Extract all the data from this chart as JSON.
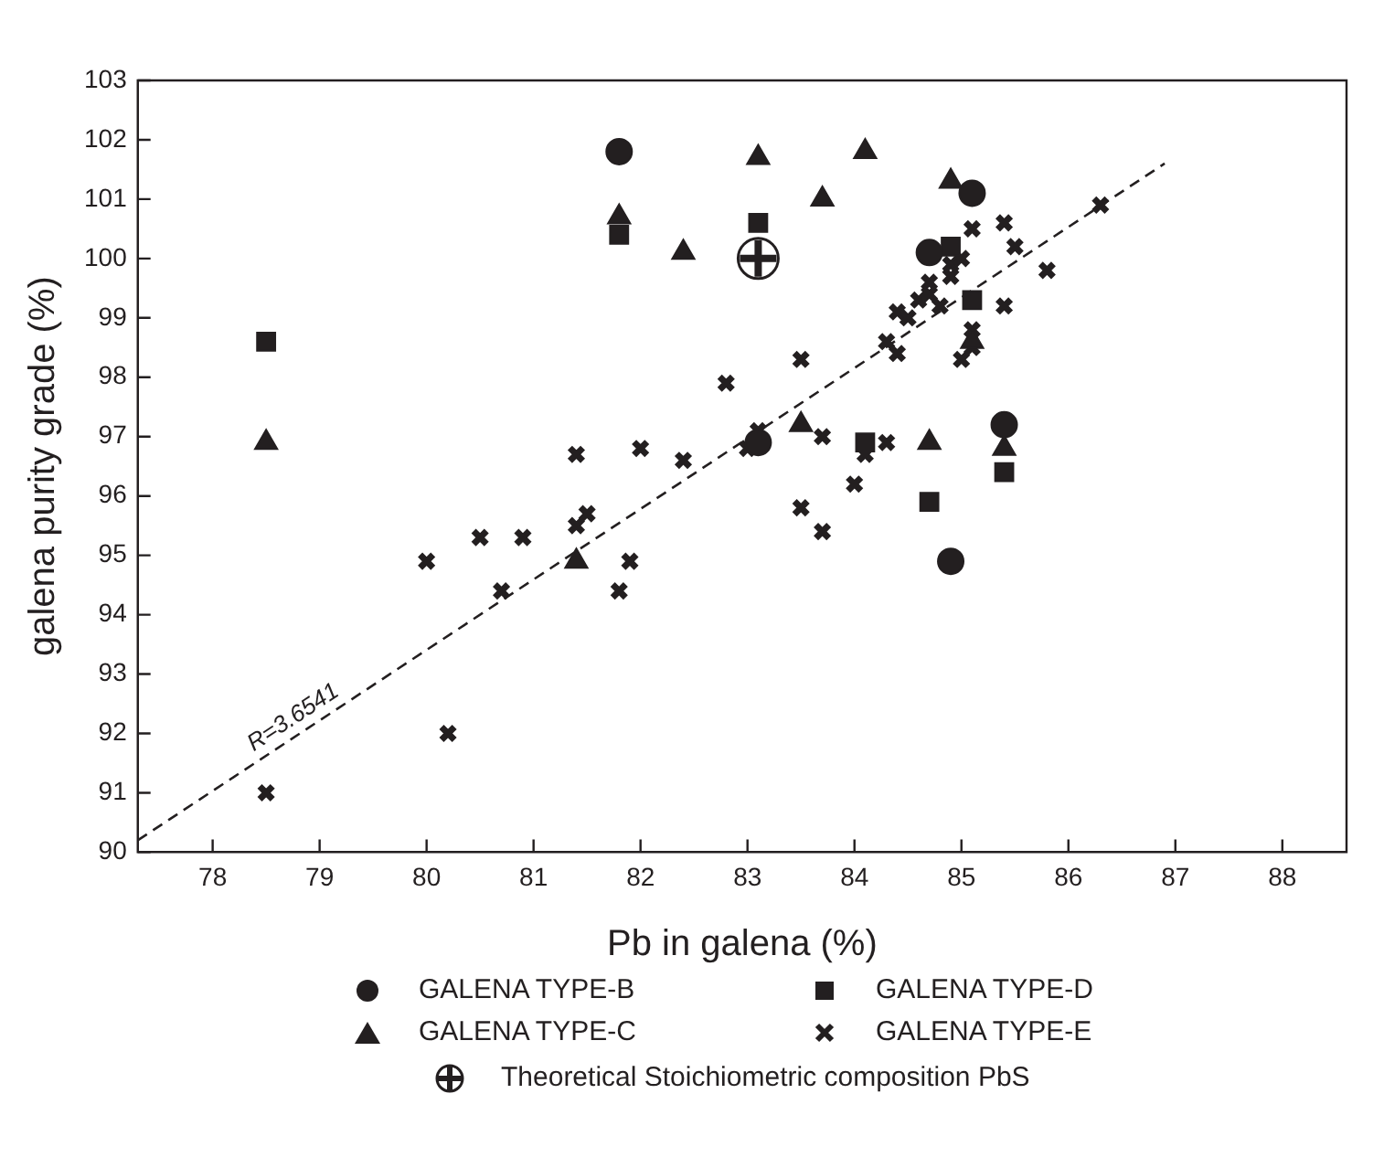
{
  "chart_data": {
    "type": "scatter",
    "xlabel": "Pb in galena (%)",
    "ylabel": "galena purity grade (%)",
    "xlim": [
      77.3,
      88.6
    ],
    "xticks": [
      78,
      79,
      80,
      81,
      82,
      83,
      84,
      85,
      86,
      87,
      88
    ],
    "ylim": [
      90,
      103
    ],
    "yticks": [
      90,
      91,
      92,
      93,
      94,
      95,
      96,
      97,
      98,
      99,
      100,
      101,
      102,
      103
    ],
    "grid": false,
    "legend": "bottom",
    "annotations": [
      "R=3.6541"
    ],
    "series": [
      {
        "name": "GALENA TYPE-B",
        "marker": "circle",
        "color": "#231f20",
        "x": [
          81.8,
          83.1,
          84.7,
          85.1,
          84.9,
          85.4
        ],
        "values": [
          101.8,
          96.9,
          100.1,
          101.1,
          94.9,
          97.2
        ]
      },
      {
        "name": "GALENA TYPE-D",
        "marker": "square",
        "color": "#231f20",
        "x": [
          78.5,
          81.8,
          83.1,
          84.9,
          85.1,
          84.1,
          84.7,
          85.4
        ],
        "values": [
          98.6,
          100.4,
          100.6,
          100.2,
          99.3,
          96.9,
          95.9,
          96.4
        ]
      },
      {
        "name": "GALENA TYPE-C",
        "marker": "triangle",
        "color": "#231f20",
        "x": [
          78.5,
          81.4,
          81.8,
          82.4,
          83.1,
          83.7,
          84.1,
          84.9,
          83.5,
          84.7,
          85.1,
          85.4
        ],
        "values": [
          96.9,
          94.9,
          100.7,
          100.1,
          101.7,
          101.0,
          101.8,
          101.3,
          97.2,
          96.9,
          98.6,
          96.8
        ]
      },
      {
        "name": "GALENA TYPE-E",
        "marker": "cross",
        "color": "#231f20",
        "x": [
          78.5,
          80.2,
          80.0,
          80.5,
          80.7,
          80.9,
          81.4,
          81.4,
          81.5,
          81.8,
          81.9,
          82.0,
          82.4,
          82.8,
          83.0,
          83.1,
          83.5,
          83.5,
          83.7,
          83.7,
          84.0,
          84.1,
          84.3,
          84.3,
          84.4,
          84.4,
          84.5,
          84.6,
          84.7,
          84.7,
          84.8,
          84.9,
          84.9,
          85.0,
          85.0,
          85.1,
          85.1,
          85.1,
          85.4,
          85.4,
          85.5,
          85.8,
          86.3
        ],
        "values": [
          91.0,
          92.0,
          94.9,
          95.3,
          94.4,
          95.3,
          96.7,
          95.5,
          95.7,
          94.4,
          94.9,
          96.8,
          96.6,
          97.9,
          96.8,
          97.1,
          98.3,
          95.8,
          97.0,
          95.4,
          96.2,
          96.7,
          96.9,
          98.6,
          99.1,
          98.4,
          99.0,
          99.3,
          99.6,
          99.4,
          99.2,
          99.7,
          99.9,
          98.3,
          100.0,
          100.5,
          98.8,
          98.5,
          100.6,
          99.2,
          100.2,
          99.8,
          100.9
        ]
      },
      {
        "name": "Theoretical Stoichiometric composition PbS",
        "marker": "circle",
        "color": "#231f20",
        "x": [
          83.1
        ],
        "values": [
          100.0
        ]
      },
      {
        "type": "line",
        "line_style": "dashed",
        "marker": "none",
        "color": "#231f20",
        "x": [
          77.3,
          86.9
        ],
        "values": [
          90.2,
          101.6
        ]
      }
    ]
  }
}
